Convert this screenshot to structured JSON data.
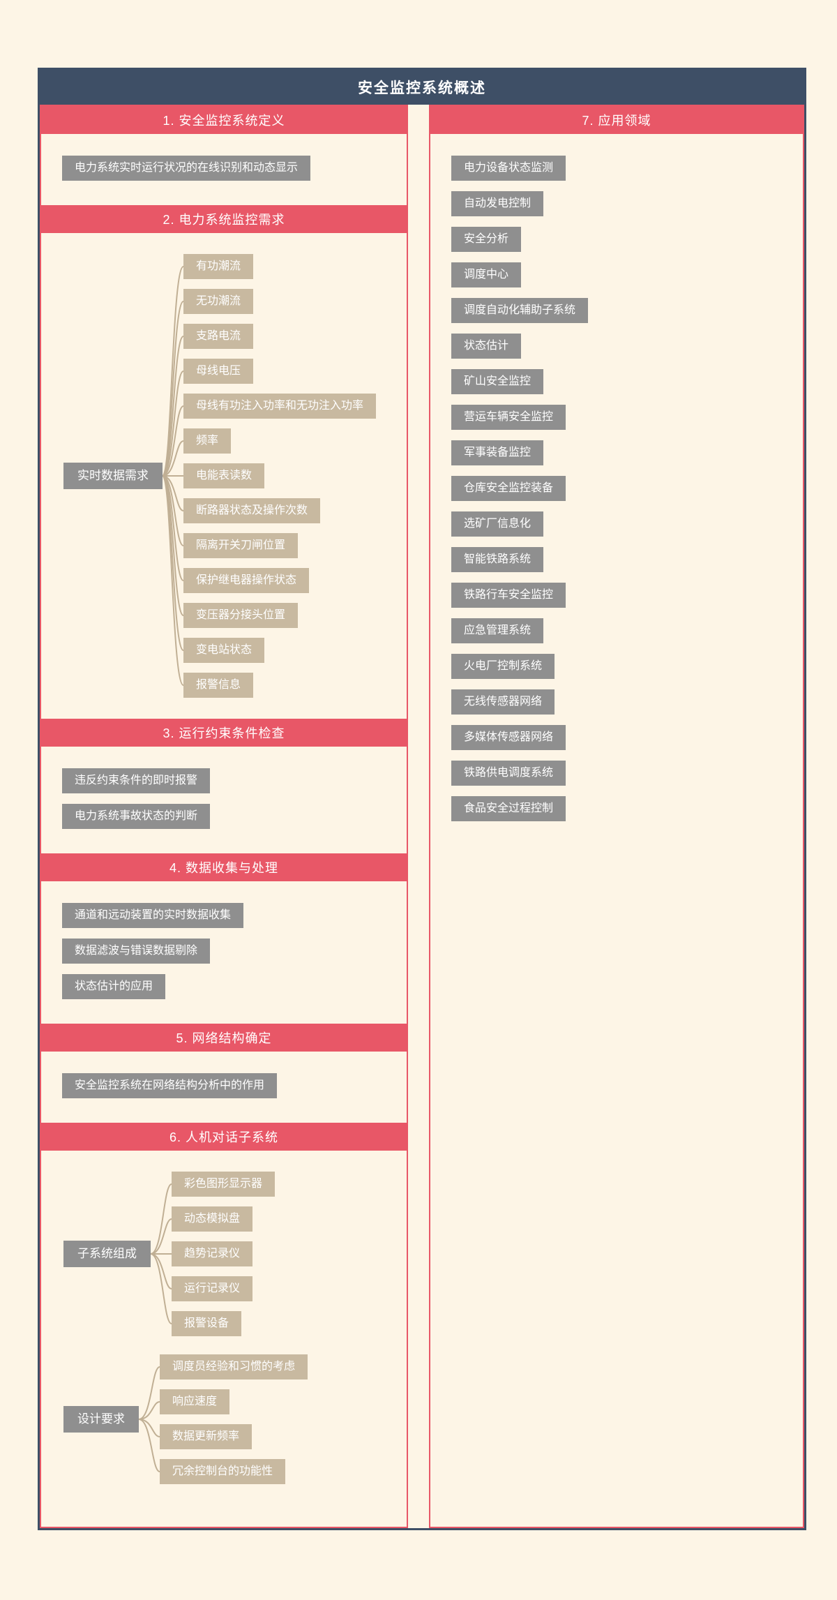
{
  "title": "安全监控系统概述",
  "colors": {
    "background": "#fdf5e6",
    "frame_border": "#3e4f66",
    "title_bar": "#3e4f66",
    "section_header": "#e85767",
    "panel_border": "#e85767",
    "gray_node": "#8f8f8f",
    "tan_node": "#c8b9a0",
    "connector": "#c0af94",
    "node_text": "#ffffff"
  },
  "left_sections": [
    {
      "header": "1. 安全监控系统定义",
      "items": [
        "电力系统实时运行状况的在线识别和动态显示"
      ]
    },
    {
      "header": "2. 电力系统监控需求",
      "trees": [
        {
          "parent": "实时数据需求",
          "children": [
            "有功潮流",
            "无功潮流",
            "支路电流",
            "母线电压",
            "母线有功注入功率和无功注入功率",
            "频率",
            "电能表读数",
            "断路器状态及操作次数",
            "隔离开关刀闸位置",
            "保护继电器操作状态",
            "变压器分接头位置",
            "变电站状态",
            "报警信息"
          ]
        }
      ]
    },
    {
      "header": "3. 运行约束条件检查",
      "items": [
        "违反约束条件的即时报警",
        "电力系统事故状态的判断"
      ]
    },
    {
      "header": "4. 数据收集与处理",
      "items": [
        "通道和远动装置的实时数据收集",
        "数据滤波与错误数据剔除",
        "状态估计的应用"
      ]
    },
    {
      "header": "5. 网络结构确定",
      "items": [
        "安全监控系统在网络结构分析中的作用"
      ]
    },
    {
      "header": "6. 人机对话子系统",
      "trees": [
        {
          "parent": "子系统组成",
          "children": [
            "彩色图形显示器",
            "动态模拟盘",
            "趋势记录仪",
            "运行记录仪",
            "报警设备"
          ]
        },
        {
          "parent": "设计要求",
          "children": [
            "调度员经验和习惯的考虑",
            "响应速度",
            "数据更新频率",
            "冗余控制台的功能性"
          ]
        }
      ]
    }
  ],
  "right_sections": [
    {
      "header": "7. 应用领域",
      "items": [
        "电力设备状态监测",
        "自动发电控制",
        "安全分析",
        "调度中心",
        "调度自动化辅助子系统",
        "状态估计",
        "矿山安全监控",
        "营运车辆安全监控",
        "军事装备监控",
        "仓库安全监控装备",
        "选矿厂信息化",
        "智能铁路系统",
        "铁路行车安全监控",
        "应急管理系统",
        "火电厂控制系统",
        "无线传感器网络",
        "多媒体传感器网络",
        "铁路供电调度系统",
        "食品安全过程控制"
      ]
    }
  ]
}
